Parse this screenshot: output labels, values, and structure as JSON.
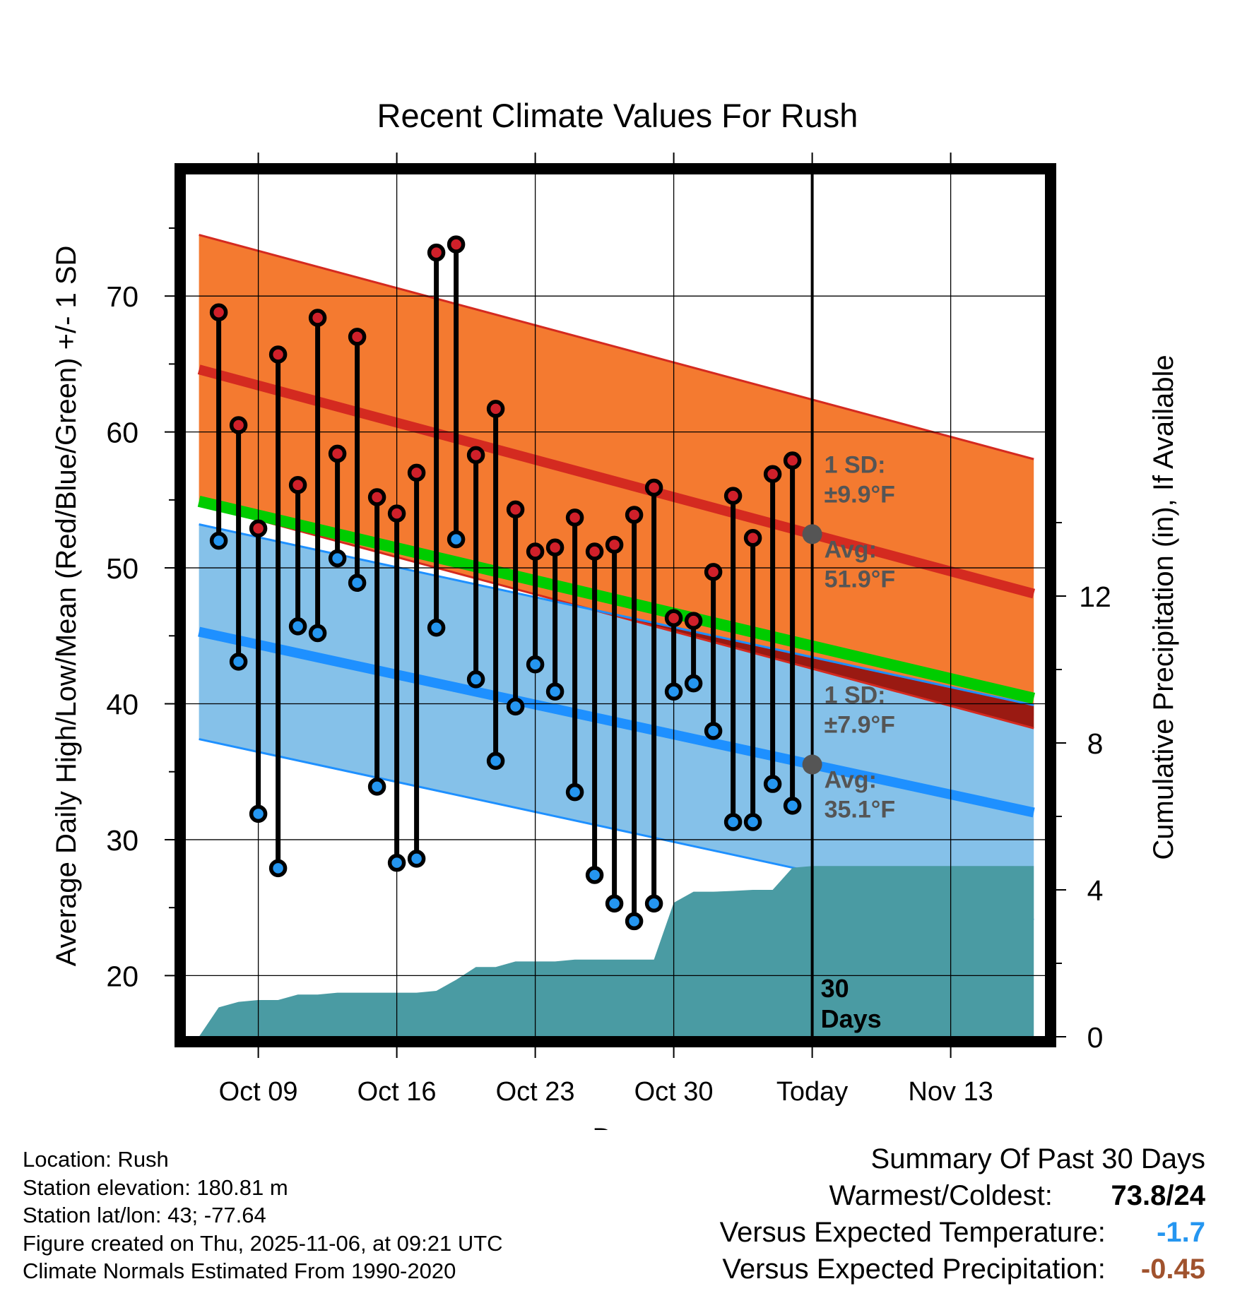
{
  "chart_data": {
    "type": "line",
    "title": "Recent Climate Values For Rush",
    "xlabel": "Day",
    "ylabel": "Average Daily High/Low/Mean (Red/Blue/Green) +/- 1 SD",
    "y2label": "Cumulative Precipitation (in), If Available",
    "xlim": [
      -1.7,
      41.8
    ],
    "ylim": [
      15.5,
      79
    ],
    "y2lim": [
      0,
      23.5
    ],
    "yticks": [
      20,
      30,
      40,
      50,
      60,
      70
    ],
    "y2ticks": [
      0,
      4,
      8,
      12
    ],
    "xtick_positions": [
      2,
      9,
      16,
      23,
      30,
      37
    ],
    "xtick_labels": [
      "Oct 09",
      "Oct 16",
      "Oct 23",
      "Oct 30",
      "Today",
      "Nov 13"
    ],
    "today_index": 30,
    "days_label": "30 Days",
    "highs": [
      68.8,
      60.5,
      52.9,
      65.7,
      56.1,
      68.4,
      58.4,
      67.0,
      55.2,
      54.0,
      57.0,
      73.2,
      73.8,
      58.3,
      61.7,
      54.3,
      51.2,
      51.5,
      53.7,
      51.2,
      51.7,
      53.9,
      55.9,
      46.3,
      46.1,
      49.7,
      55.3,
      52.2,
      56.9,
      57.9
    ],
    "lows": [
      52.0,
      43.1,
      31.9,
      27.9,
      45.7,
      45.2,
      50.7,
      48.9,
      33.9,
      28.3,
      28.6,
      45.6,
      52.1,
      41.8,
      35.8,
      39.8,
      42.9,
      40.9,
      33.5,
      27.4,
      25.3,
      24.0,
      25.3,
      40.9,
      41.5,
      38.0,
      31.3,
      31.3,
      34.1,
      32.5
    ],
    "normal_high_avg": [
      64.6,
      48.1
    ],
    "normal_high_sd": 9.9,
    "normal_low_avg": [
      45.3,
      32.0
    ],
    "normal_low_sd": 7.9,
    "normal_mean": [
      54.9,
      40.4
    ],
    "normal_x": [
      -1,
      41.2
    ],
    "precip_x": [
      -1,
      0,
      1,
      2,
      3,
      4,
      5,
      6,
      7,
      8,
      9,
      10,
      11,
      12,
      13,
      14,
      15,
      16,
      17,
      18,
      19,
      20,
      21,
      22,
      23,
      24,
      25,
      26,
      27,
      28,
      29,
      30,
      41.2
    ],
    "precip_cumulative": [
      0.0,
      0.8,
      0.95,
      1.0,
      1.0,
      1.15,
      1.15,
      1.2,
      1.2,
      1.2,
      1.2,
      1.2,
      1.25,
      1.55,
      1.9,
      1.9,
      2.05,
      2.05,
      2.05,
      2.1,
      2.1,
      2.1,
      2.1,
      2.1,
      3.65,
      3.95,
      3.95,
      3.97,
      4.0,
      4.0,
      4.6,
      4.65,
      4.65
    ],
    "annotations": {
      "high_sd": "1 SD:",
      "high_sd_value": "±9.9°F",
      "high_avg": "Avg:",
      "high_avg_value": "51.9°F",
      "low_sd": "1 SD:",
      "low_sd_value": "±7.9°F",
      "low_avg": "Avg:",
      "low_avg_value": "35.1°F"
    },
    "colors": {
      "high_band": "#f47a30",
      "high_line": "#d42a20",
      "low_band": "#85c1e9",
      "low_line": "#1e90ff",
      "mean_line": "#00cc00",
      "overlap": "#9a1a12",
      "precip": "#4a9ba3",
      "high_dot": "#d0202a",
      "low_dot": "#2596f0",
      "annotation": "#555555"
    }
  },
  "info": {
    "location": "Location: Rush",
    "elevation": "Station elevation: 180.81 m",
    "latlon": "Station lat/lon: 43; -77.64",
    "created": "Figure created on Thu, 2025-11-06, at 09:21 UTC",
    "normals": "Climate Normals Estimated From 1990-2020"
  },
  "summary": {
    "title": "Summary Of Past 30 Days",
    "warm_cold_label": "Warmest/Coldest:",
    "warm_cold_value": "73.8/24",
    "temp_label": "Versus Expected Temperature:",
    "temp_value": "-1.7",
    "temp_color": "#2596f0",
    "precip_label": "Versus Expected Precipitation:",
    "precip_value": "-0.45",
    "precip_color": "#a0522d"
  }
}
